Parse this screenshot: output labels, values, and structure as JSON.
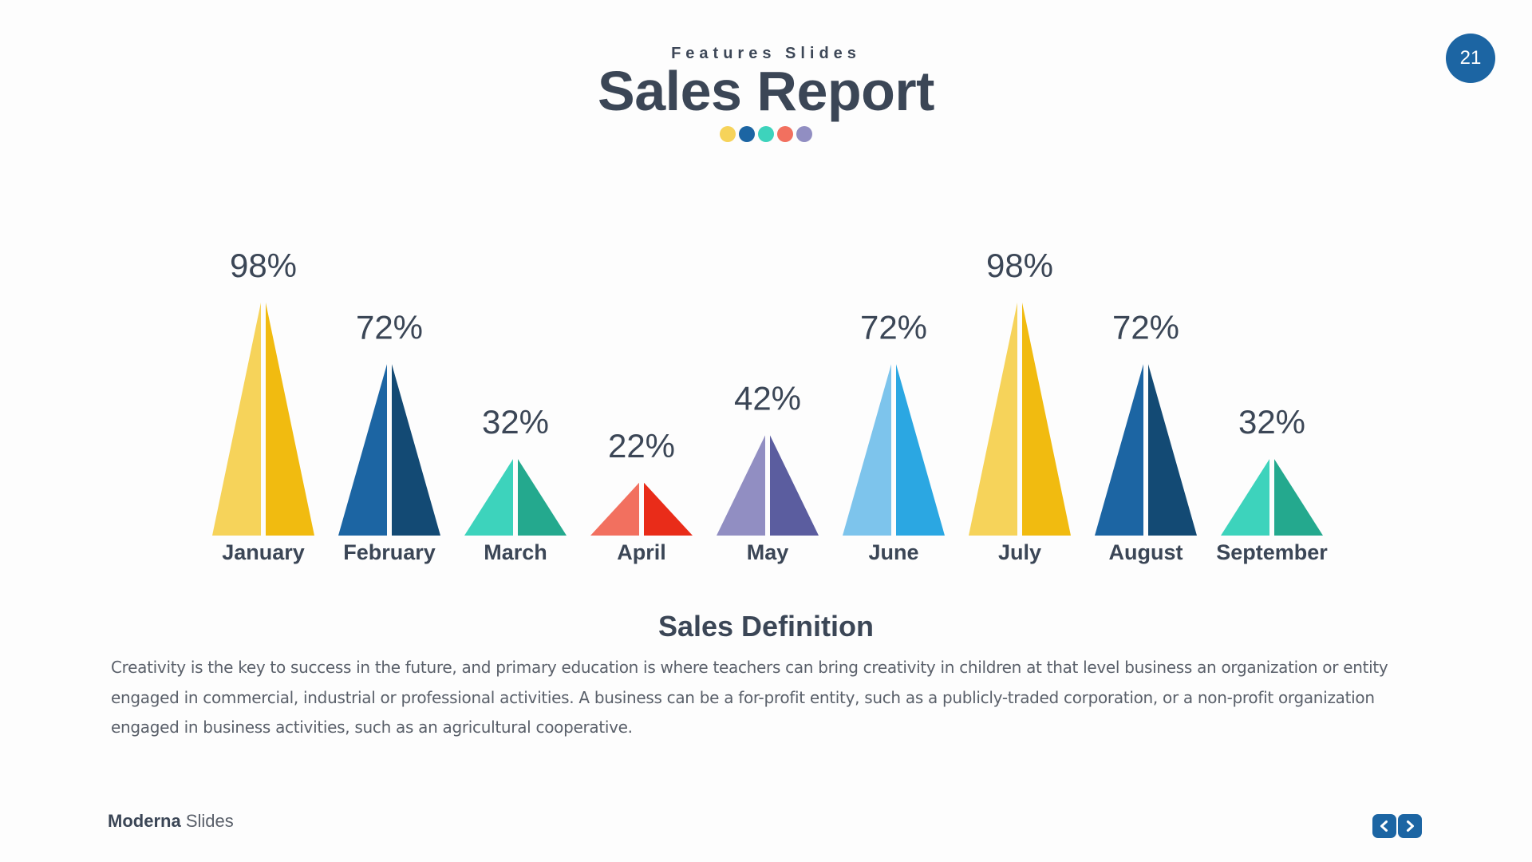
{
  "header": {
    "subtitle": "Features Slides",
    "title": "Sales Report",
    "dot_colors": [
      "#f6d35a",
      "#1c65a3",
      "#3dd3bc",
      "#f2705f",
      "#918ec2"
    ],
    "page_number": "21",
    "page_badge_color": "#1c65a3"
  },
  "chart_data": {
    "type": "bar",
    "categories": [
      "January",
      "February",
      "March",
      "April",
      "May",
      "June",
      "July",
      "August",
      "September"
    ],
    "values": [
      98,
      72,
      32,
      22,
      42,
      72,
      98,
      72,
      32
    ],
    "data_labels": [
      "98%",
      "72%",
      "32%",
      "22%",
      "42%",
      "72%",
      "98%",
      "72%",
      "32%"
    ],
    "colors": [
      [
        "#f6d35a",
        "#f1bb10"
      ],
      [
        "#1c65a3",
        "#134a74"
      ],
      [
        "#3dd3bc",
        "#24a98e"
      ],
      [
        "#f2705f",
        "#e92c19"
      ],
      [
        "#918ec2",
        "#5b5d9f"
      ],
      [
        "#7dc4ec",
        "#2ba7e2"
      ],
      [
        "#f6d35a",
        "#f1bb10"
      ],
      [
        "#1c65a3",
        "#134a74"
      ],
      [
        "#3dd3bc",
        "#24a98e"
      ]
    ]
  },
  "definition": {
    "heading": "Sales Definition",
    "text": "Creativity is the key to success in the future, and primary education is where teachers can bring creativity in children at that level business an organization or entity engaged in commercial, industrial or professional activities. A business can be a for-profit entity, such as a publicly-traded corporation, or a non-profit organization engaged in business activities, such as an agricultural cooperative."
  },
  "footer": {
    "brand_bold": "Moderna",
    "brand_light": "Slides",
    "nav_color": "#1c65a3"
  }
}
